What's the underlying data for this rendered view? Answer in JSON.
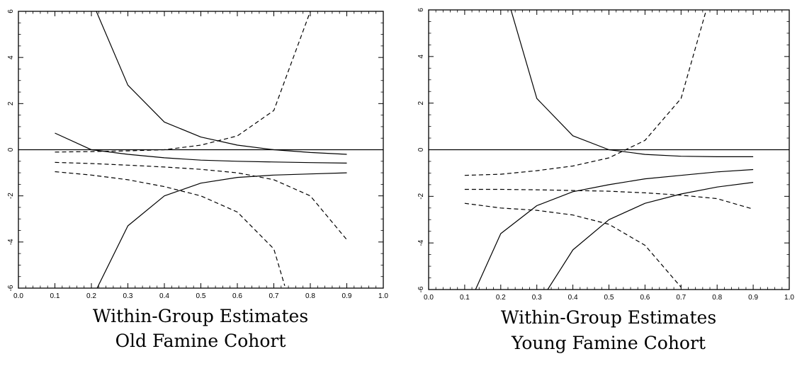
{
  "chart_data": [
    {
      "type": "line",
      "caption_line1": "Within-Group Estimates",
      "caption_line2": "Old Famine Cohort",
      "xlim": [
        0.0,
        1.0
      ],
      "ylim": [
        -6,
        6
      ],
      "x_ticks": [
        "0.0",
        "0.1",
        "0.2",
        "0.3",
        "0.4",
        "0.5",
        "0.6",
        "0.7",
        "0.8",
        "0.9",
        "1.0"
      ],
      "y_ticks": [
        "-6",
        "-4",
        "-2",
        "0",
        "2",
        "4",
        "6"
      ],
      "reference_line_y": 0,
      "series": [
        {
          "style": "solid",
          "x": [
            0.2,
            0.3,
            0.4,
            0.5,
            0.6,
            0.7,
            0.8,
            0.9
          ],
          "y": [
            6.5,
            2.8,
            1.2,
            0.55,
            0.2,
            0.0,
            -0.12,
            -0.2
          ]
        },
        {
          "style": "solid",
          "x": [
            0.1,
            0.2,
            0.3,
            0.4,
            0.5,
            0.6,
            0.7,
            0.8,
            0.9
          ],
          "y": [
            0.72,
            0.0,
            -0.2,
            -0.35,
            -0.45,
            -0.5,
            -0.53,
            -0.56,
            -0.58
          ]
        },
        {
          "style": "solid",
          "x": [
            0.2,
            0.3,
            0.4,
            0.5,
            0.6,
            0.7,
            0.8,
            0.9
          ],
          "y": [
            -6.5,
            -3.3,
            -2.0,
            -1.45,
            -1.2,
            -1.1,
            -1.05,
            -1.0
          ]
        },
        {
          "style": "dashed",
          "x": [
            0.1,
            0.2,
            0.3,
            0.4,
            0.5,
            0.6,
            0.7,
            0.8
          ],
          "y": [
            -0.1,
            -0.08,
            -0.05,
            0.0,
            0.2,
            0.6,
            1.7,
            6.0
          ]
        },
        {
          "style": "dashed",
          "x": [
            0.1,
            0.2,
            0.3,
            0.4,
            0.5,
            0.6,
            0.7,
            0.8,
            0.9
          ],
          "y": [
            -0.55,
            -0.6,
            -0.67,
            -0.75,
            -0.85,
            -1.0,
            -1.3,
            -2.0,
            -3.9
          ]
        },
        {
          "style": "dashed",
          "x": [
            0.1,
            0.2,
            0.3,
            0.4,
            0.5,
            0.6,
            0.7,
            0.73
          ],
          "y": [
            -0.95,
            -1.1,
            -1.3,
            -1.6,
            -2.0,
            -2.7,
            -4.3,
            -5.9
          ]
        }
      ]
    },
    {
      "type": "line",
      "caption_line1": "Within-Group Estimates",
      "caption_line2": "Young Famine Cohort",
      "xlim": [
        0.0,
        1.0
      ],
      "ylim": [
        -6,
        6
      ],
      "x_ticks": [
        "0.0",
        "0.1",
        "0.2",
        "0.3",
        "0.4",
        "0.5",
        "0.6",
        "0.7",
        "0.8",
        "0.9",
        "1.0"
      ],
      "y_ticks": [
        "-6",
        "-4",
        "-2",
        "0",
        "2",
        "4",
        "6"
      ],
      "reference_line_y": 0,
      "series": [
        {
          "style": "solid",
          "x": [
            0.2,
            0.3,
            0.4,
            0.5,
            0.6,
            0.7,
            0.8,
            0.9
          ],
          "y": [
            7.5,
            2.2,
            0.6,
            0.0,
            -0.2,
            -0.28,
            -0.3,
            -0.3
          ]
        },
        {
          "style": "solid",
          "x": [
            0.13,
            0.2,
            0.3,
            0.4,
            0.5,
            0.6,
            0.7,
            0.8,
            0.9
          ],
          "y": [
            -6.0,
            -3.6,
            -2.4,
            -1.8,
            -1.5,
            -1.25,
            -1.1,
            -0.95,
            -0.85
          ]
        },
        {
          "style": "solid",
          "x": [
            0.33,
            0.4,
            0.5,
            0.6,
            0.7,
            0.8,
            0.9
          ],
          "y": [
            -6.0,
            -4.3,
            -3.0,
            -2.3,
            -1.9,
            -1.6,
            -1.4
          ]
        },
        {
          "style": "dashed",
          "x": [
            0.1,
            0.2,
            0.3,
            0.4,
            0.5,
            0.6,
            0.7,
            0.77
          ],
          "y": [
            -1.1,
            -1.05,
            -0.9,
            -0.7,
            -0.35,
            0.4,
            2.2,
            6.0
          ]
        },
        {
          "style": "dashed",
          "x": [
            0.1,
            0.2,
            0.3,
            0.4,
            0.5,
            0.6,
            0.7,
            0.8,
            0.9
          ],
          "y": [
            -1.7,
            -1.7,
            -1.72,
            -1.75,
            -1.78,
            -1.85,
            -1.95,
            -2.1,
            -2.55
          ]
        },
        {
          "style": "dashed",
          "x": [
            0.1,
            0.2,
            0.3,
            0.4,
            0.5,
            0.6,
            0.7
          ],
          "y": [
            -2.3,
            -2.5,
            -2.6,
            -2.8,
            -3.2,
            -4.1,
            -5.9
          ]
        }
      ]
    }
  ]
}
